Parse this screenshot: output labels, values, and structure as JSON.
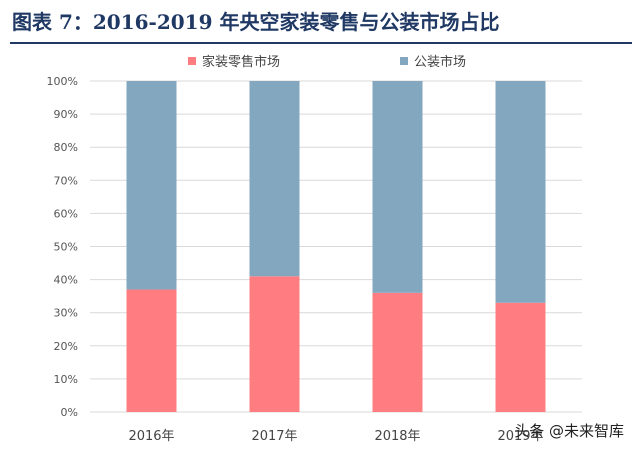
{
  "title": "图表 7：2016-2019 年央空家装零售与公装市场占比",
  "watermark": "头条 @未来智库",
  "chart_data": {
    "type": "bar",
    "stacked": true,
    "categories": [
      "2016年",
      "2017年",
      "2018年",
      "2019年"
    ],
    "series": [
      {
        "name": "家装零售市场",
        "values": [
          37,
          41,
          36,
          33
        ],
        "color": "#ff7c80"
      },
      {
        "name": "公装市场",
        "values": [
          63,
          59,
          64,
          67
        ],
        "color": "#84a7c0"
      }
    ],
    "ylim": [
      0,
      100
    ],
    "yticks": [
      "0%",
      "10%",
      "20%",
      "30%",
      "40%",
      "50%",
      "60%",
      "70%",
      "80%",
      "90%",
      "100%"
    ],
    "grid": true,
    "legend_position": "top"
  }
}
